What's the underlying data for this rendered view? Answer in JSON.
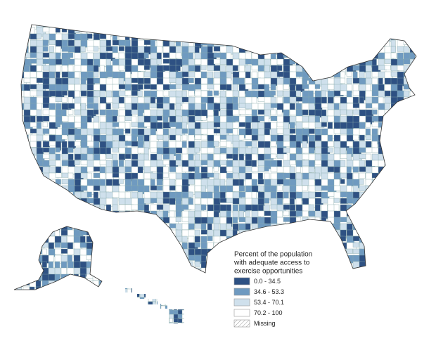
{
  "legend": {
    "title_lines": [
      "Percent of the population",
      "with adequate access to",
      "exercise opportunities"
    ],
    "entries": [
      {
        "label": "0.0 - 34.5",
        "color": "#2e5183"
      },
      {
        "label": "34.6 - 53.3",
        "color": "#6f9ac0"
      },
      {
        "label": "53.4 - 70.1",
        "color": "#cfe0ec"
      },
      {
        "label": "70.2 - 100",
        "color": "#ffffff"
      },
      {
        "label": "Missing",
        "color": "hatch"
      }
    ]
  }
}
